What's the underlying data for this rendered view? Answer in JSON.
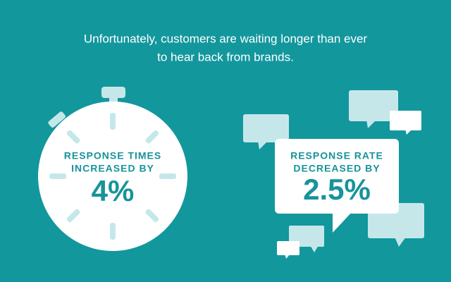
{
  "header": {
    "lines": [
      "Unfortunately, customers are waiting longer than ever",
      "to hear back from brands."
    ]
  },
  "stats": [
    {
      "label_lines": [
        "RESPONSE TIMES",
        "INCREASED BY"
      ],
      "value": "4%"
    },
    {
      "label_lines": [
        "RESPONSE RATE",
        "DECREASED BY"
      ],
      "value": "2.5%"
    }
  ]
}
